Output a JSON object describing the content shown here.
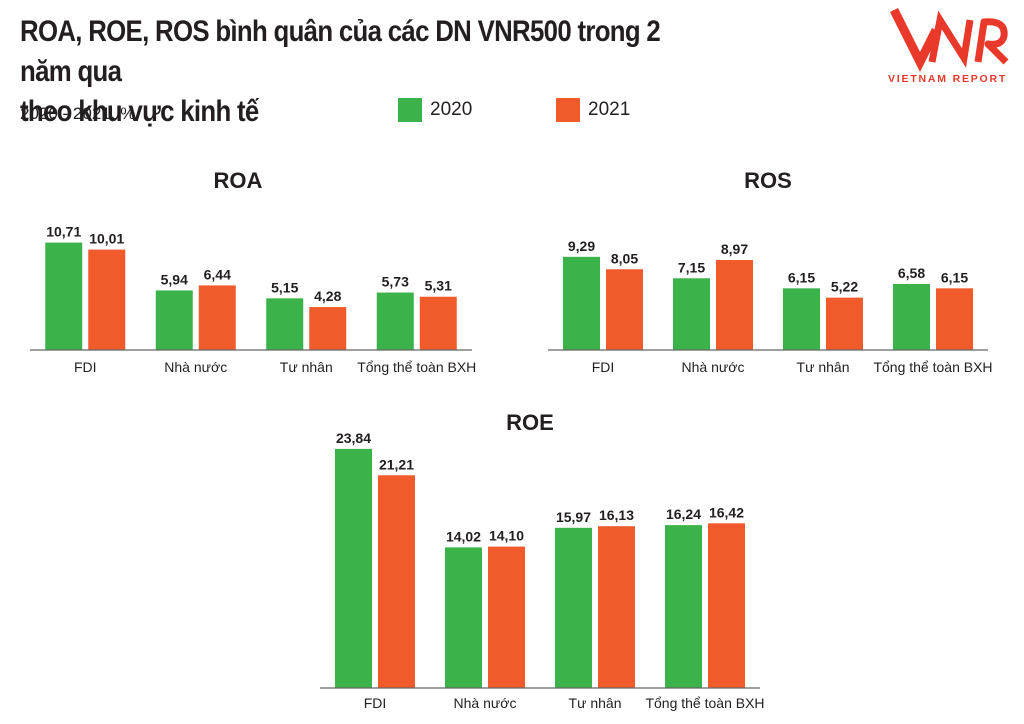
{
  "header": {
    "title_line1": "ROA, ROE, ROS bình quân của các DN VNR500 trong 2 năm qua",
    "title_line2": "theo khu vực kinh tế",
    "subtitle": "2020 - 2021, %"
  },
  "logo": {
    "text": "VIETNAM REPORT",
    "mark": "VNR"
  },
  "legend": [
    {
      "label": "2020",
      "color": "#3cb34a"
    },
    {
      "label": "2021",
      "color": "#f15a2b"
    }
  ],
  "colors": {
    "y2020": "#3cb34a",
    "y2021": "#f15a2b"
  },
  "chart_data": [
    {
      "type": "bar",
      "title": "ROA",
      "categories": [
        "FDI",
        "Nhà nước",
        "Tư nhân",
        "Tổng thể toàn BXH"
      ],
      "series": [
        {
          "name": "2020",
          "values": [
            10.71,
            5.94,
            5.15,
            5.73
          ],
          "labels": [
            "10,71",
            "5,94",
            "5,15",
            "5,73"
          ]
        },
        {
          "name": "2021",
          "values": [
            10.01,
            6.44,
            4.28,
            5.31
          ],
          "labels": [
            "10,01",
            "6,44",
            "4,28",
            "5,31"
          ]
        }
      ]
    },
    {
      "type": "bar",
      "title": "ROS",
      "categories": [
        "FDI",
        "Nhà nước",
        "Tư nhân",
        "Tổng thể toàn BXH"
      ],
      "series": [
        {
          "name": "2020",
          "values": [
            9.29,
            7.15,
            6.15,
            6.58
          ],
          "labels": [
            "9,29",
            "7,15",
            "6,15",
            "6,58"
          ]
        },
        {
          "name": "2021",
          "values": [
            8.05,
            8.97,
            5.22,
            6.15
          ],
          "labels": [
            "8,05",
            "8,97",
            "5,22",
            "6,15"
          ]
        }
      ]
    },
    {
      "type": "bar",
      "title": "ROE",
      "categories": [
        "FDI",
        "Nhà nước",
        "Tư nhân",
        "Tổng thể toàn BXH"
      ],
      "series": [
        {
          "name": "2020",
          "values": [
            23.84,
            14.02,
            15.97,
            16.24
          ],
          "labels": [
            "23,84",
            "14,02",
            "15,97",
            "16,24"
          ]
        },
        {
          "name": "2021",
          "values": [
            21.21,
            14.1,
            16.13,
            16.42
          ],
          "labels": [
            "21,21",
            "14,10",
            "16,13",
            "16,42"
          ]
        }
      ]
    }
  ]
}
